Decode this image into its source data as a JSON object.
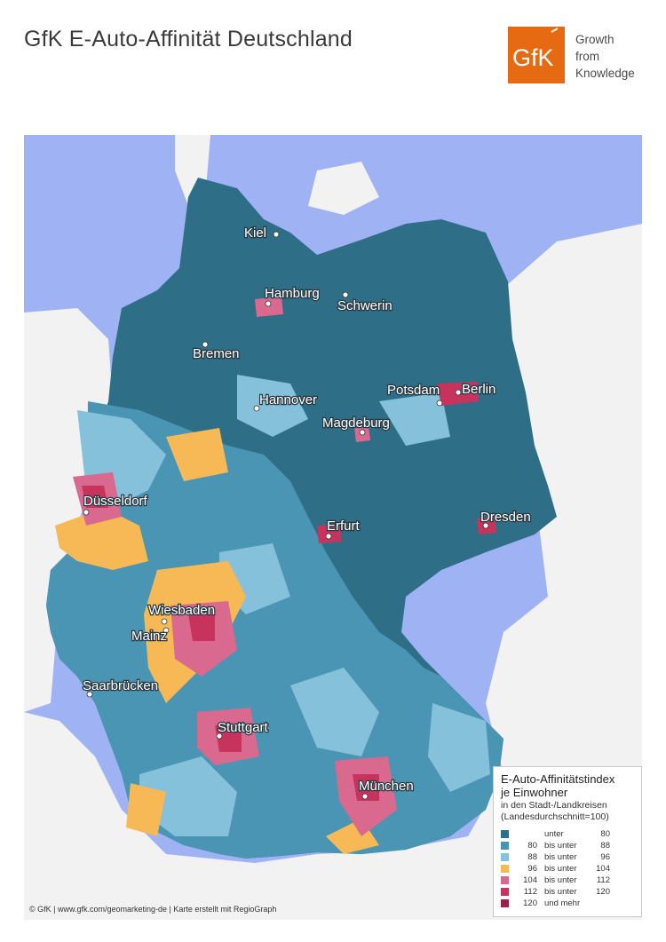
{
  "title": "GfK E-Auto-Affinität Deutschland",
  "logo": {
    "mark_text": "GfK",
    "lines": [
      "Growth",
      "from",
      "Knowledge"
    ],
    "color": "#e66a12"
  },
  "map": {
    "cities": [
      {
        "name": "Kiel"
      },
      {
        "name": "Hamburg"
      },
      {
        "name": "Schwerin"
      },
      {
        "name": "Bremen"
      },
      {
        "name": "Hannover"
      },
      {
        "name": "Potsdam"
      },
      {
        "name": "Berlin"
      },
      {
        "name": "Magdeburg"
      },
      {
        "name": "Düsseldorf"
      },
      {
        "name": "Erfurt"
      },
      {
        "name": "Dresden"
      },
      {
        "name": "Wiesbaden"
      },
      {
        "name": "Mainz"
      },
      {
        "name": "Saarbrücken"
      },
      {
        "name": "Stuttgart"
      },
      {
        "name": "München"
      }
    ],
    "colors": {
      "sea": "#9fb2f3",
      "land_outside": "#f2f2f2"
    }
  },
  "legend": {
    "title_line1": "E-Auto-Affinitätstindex",
    "title_line2": "je Einwohner",
    "sub_line1": "in den Stadt-/Landkreisen",
    "sub_line2": "(Landesdurchschnitt=100)",
    "rows": [
      {
        "from": "",
        "sep": "unter",
        "to": "80",
        "color": "#2e6e86"
      },
      {
        "from": "80",
        "sep": "bis unter",
        "to": "88",
        "color": "#4a95b3"
      },
      {
        "from": "88",
        "sep": "bis unter",
        "to": "96",
        "color": "#86c1dc"
      },
      {
        "from": "96",
        "sep": "bis unter",
        "to": "104",
        "color": "#f7b955"
      },
      {
        "from": "104",
        "sep": "bis unter",
        "to": "112",
        "color": "#d9698e"
      },
      {
        "from": "112",
        "sep": "bis unter",
        "to": "120",
        "color": "#c8335d"
      },
      {
        "from": "120",
        "sep": "und mehr",
        "to": "",
        "color": "#9b1e4b"
      }
    ]
  },
  "credit": "© GfK | www.gfk.com/geomarketing-de | Karte erstellt mit RegioGraph"
}
